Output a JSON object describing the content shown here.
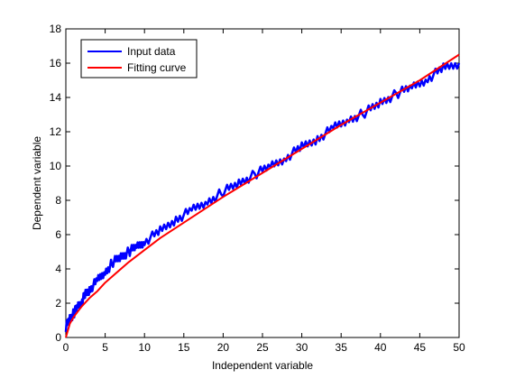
{
  "chart_data": {
    "type": "line",
    "title": "",
    "xlabel": "Independent variable",
    "ylabel": "Dependent variable",
    "xlim": [
      0,
      50
    ],
    "ylim": [
      0,
      18
    ],
    "xticks": [
      0,
      5,
      10,
      15,
      20,
      25,
      30,
      35,
      40,
      45,
      50
    ],
    "yticks": [
      0,
      2,
      4,
      6,
      8,
      10,
      12,
      14,
      16,
      18
    ],
    "grid": false,
    "legend_position": "top-left",
    "series": [
      {
        "name": "Input data",
        "color": "#0000ff",
        "x": [
          0,
          0.5,
          1,
          1.5,
          2,
          2.5,
          3,
          4,
          5,
          6,
          7,
          8,
          9,
          10,
          12,
          14,
          16,
          18,
          20,
          22,
          24,
          26,
          28,
          30,
          32,
          34,
          36,
          38,
          40,
          42,
          44,
          46,
          48,
          50
        ],
        "y": [
          0.6,
          1.1,
          1.4,
          1.8,
          2.1,
          2.5,
          2.8,
          3.3,
          3.8,
          4.4,
          4.7,
          5.0,
          5.3,
          5.6,
          6.2,
          6.9,
          7.4,
          7.9,
          8.5,
          9.0,
          9.5,
          10.0,
          10.5,
          11.1,
          11.6,
          12.2,
          12.7,
          13.1,
          13.7,
          14.2,
          14.6,
          15.1,
          15.7,
          16.0
        ]
      },
      {
        "name": "Fitting curve",
        "color": "#ff0000",
        "x": [
          0,
          0.5,
          1,
          2,
          3,
          4,
          5,
          6,
          8,
          10,
          12,
          15,
          20,
          25,
          30,
          35,
          40,
          45,
          50
        ],
        "y": [
          0.0,
          0.8,
          1.2,
          1.8,
          2.3,
          2.7,
          3.2,
          3.6,
          4.4,
          5.1,
          5.8,
          6.7,
          8.2,
          9.6,
          11.0,
          12.4,
          13.7,
          15.0,
          16.5
        ]
      }
    ]
  }
}
